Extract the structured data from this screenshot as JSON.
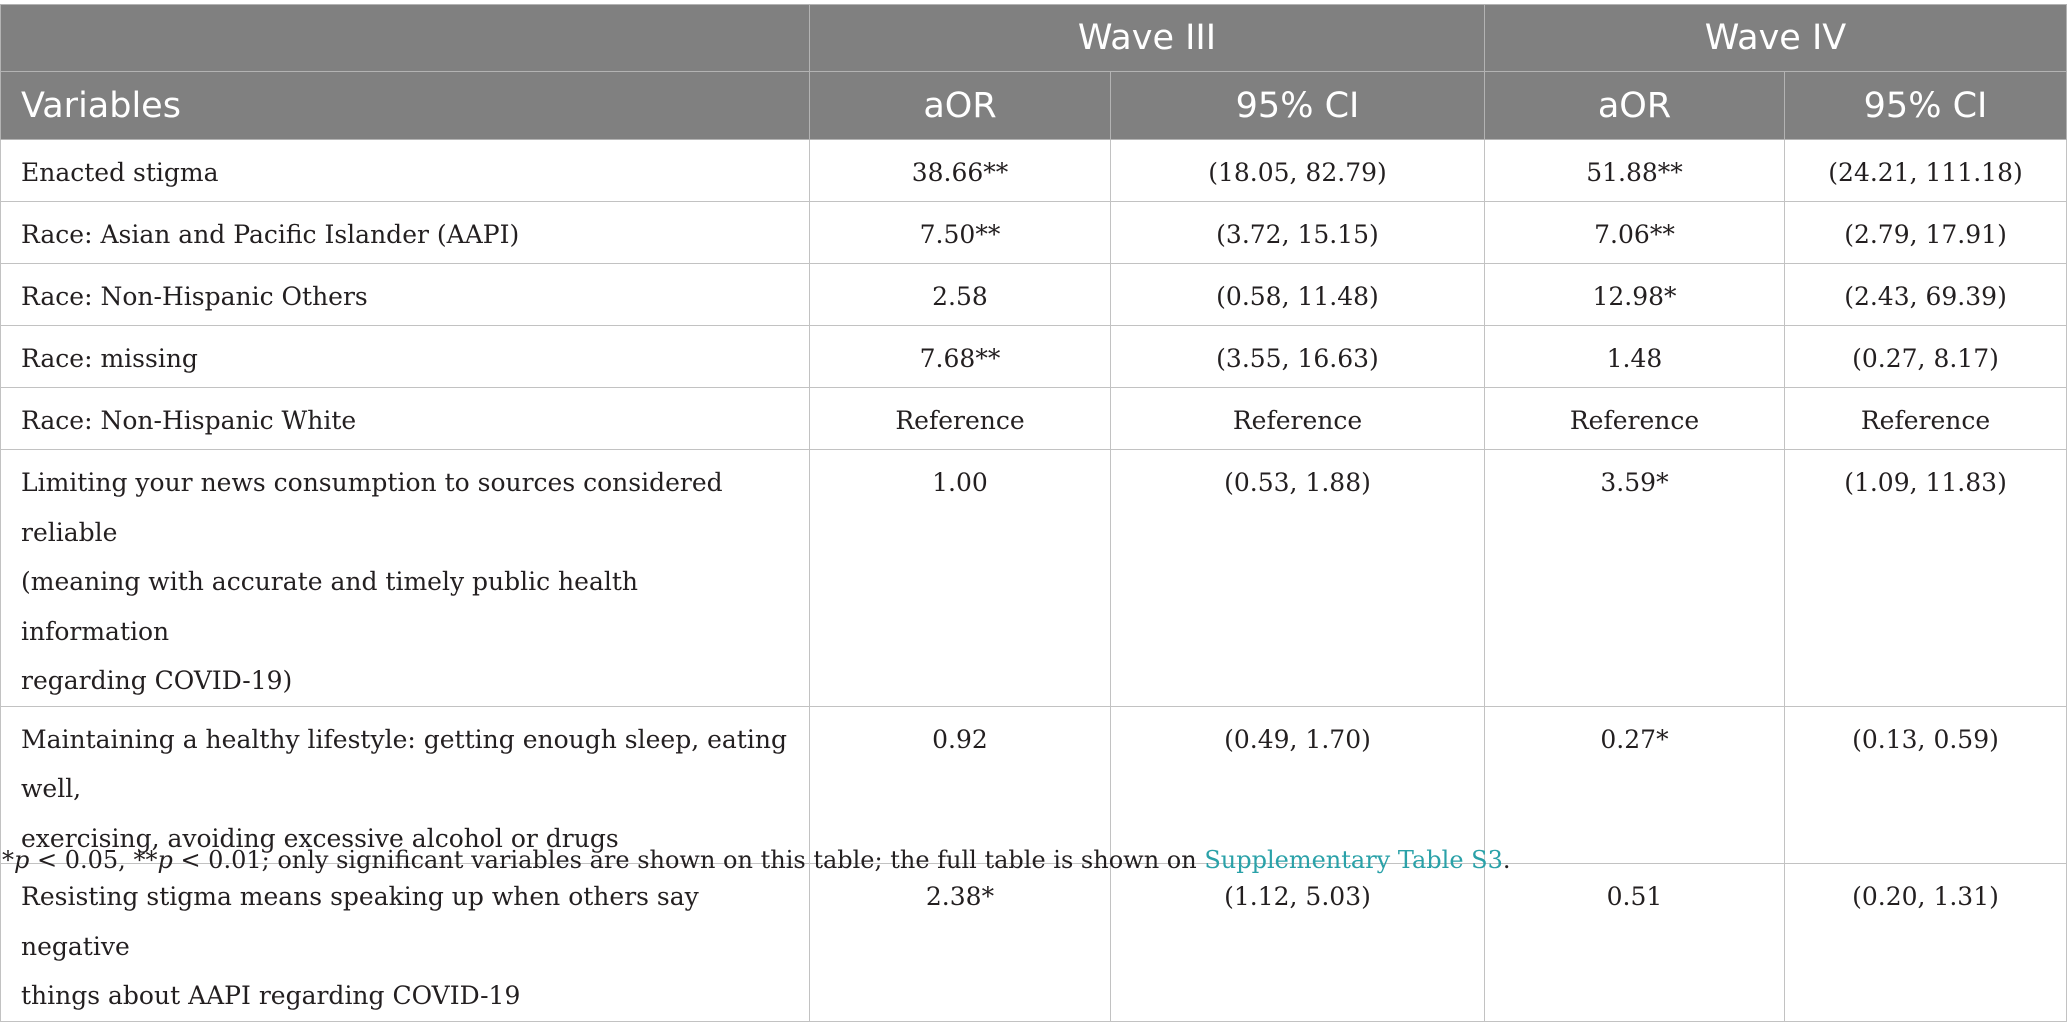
{
  "table": {
    "group_headers": {
      "wave3": "Wave III",
      "wave4": "Wave IV"
    },
    "column_headers": {
      "variables": "Variables",
      "w3_aor": "aOR",
      "w3_ci": "95% CI",
      "w4_aor": "aOR",
      "w4_ci": "95% CI"
    },
    "rows": [
      {
        "variable": "Enacted stigma",
        "w3_aor": "38.66**",
        "w3_ci": "(18.05, 82.79)",
        "w4_aor": "51.88**",
        "w4_ci": "(24.21, 111.18)"
      },
      {
        "variable": "Race: Asian and Pacific Islander (AAPI)",
        "w3_aor": "7.50**",
        "w3_ci": "(3.72, 15.15)",
        "w4_aor": "7.06**",
        "w4_ci": "(2.79, 17.91)"
      },
      {
        "variable": "Race: Non-Hispanic Others",
        "w3_aor": "2.58",
        "w3_ci": "(0.58, 11.48)",
        "w4_aor": "12.98*",
        "w4_ci": "(2.43, 69.39)"
      },
      {
        "variable": "Race: missing",
        "w3_aor": "7.68**",
        "w3_ci": "(3.55, 16.63)",
        "w4_aor": "1.48",
        "w4_ci": "(0.27, 8.17)"
      },
      {
        "variable": "Race: Non-Hispanic White",
        "w3_aor": "Reference",
        "w3_ci": "Reference",
        "w4_aor": "Reference",
        "w4_ci": "Reference"
      },
      {
        "variable_lines": [
          "Limiting your news consumption to sources considered reliable",
          "(meaning with accurate and timely public health information",
          "regarding COVID-19)"
        ],
        "w3_aor": "1.00",
        "w3_ci": "(0.53, 1.88)",
        "w4_aor": "3.59*",
        "w4_ci": "(1.09, 11.83)"
      },
      {
        "variable_lines": [
          "Maintaining a healthy lifestyle: getting enough sleep, eating well,",
          "exercising, avoiding excessive alcohol or drugs"
        ],
        "w3_aor": "0.92",
        "w3_ci": "(0.49, 1.70)",
        "w4_aor": "0.27*",
        "w4_ci": "(0.13, 0.59)"
      },
      {
        "variable_lines": [
          "Resisting stigma means speaking up when others say negative",
          "things about AAPI regarding COVID-19"
        ],
        "w3_aor": "2.38*",
        "w3_ci": "(1.12, 5.03)",
        "w4_aor": "0.51",
        "w4_ci": "(0.20, 1.31)"
      }
    ]
  },
  "footnote": {
    "star1": "*",
    "p1": "p",
    "cond1": " < 0.05, **",
    "p2": "p",
    "cond2": " < 0.01; only significant variables are shown on this table; the full table is shown on ",
    "link": "Supplementary Table S3",
    "end": "."
  }
}
